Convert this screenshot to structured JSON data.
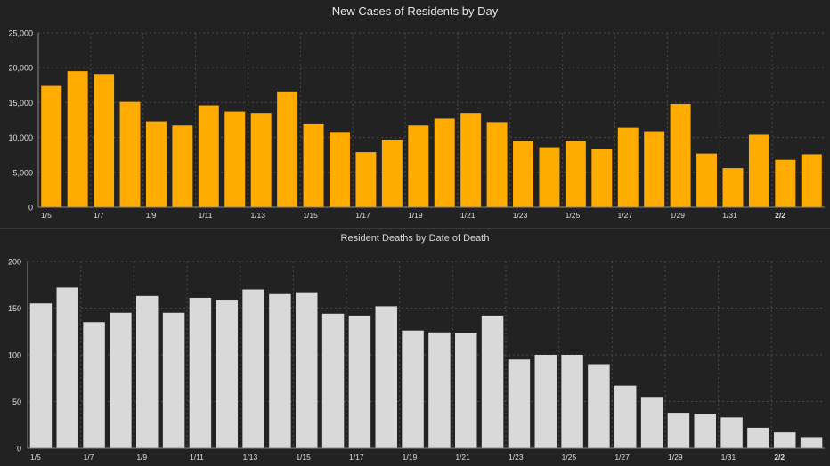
{
  "colors": {
    "background": "#222222",
    "cases_bar": "#ffab00",
    "deaths_bar": "#d9d9d9",
    "grid": "#4a4a4a",
    "axis": "#8a8a8a",
    "tick_text": "#e0e0e0"
  },
  "chart_data": [
    {
      "type": "bar",
      "title": "New Cases of Residents by Day",
      "xlabel": "",
      "ylabel": "",
      "categories": [
        "1/5",
        "1/6",
        "1/7",
        "1/8",
        "1/9",
        "1/10",
        "1/11",
        "1/12",
        "1/13",
        "1/14",
        "1/15",
        "1/16",
        "1/17",
        "1/18",
        "1/19",
        "1/20",
        "1/21",
        "1/22",
        "1/23",
        "1/24",
        "1/25",
        "1/26",
        "1/27",
        "1/28",
        "1/29",
        "1/30",
        "1/31",
        "2/1",
        "2/2",
        "2/3"
      ],
      "values": [
        17400,
        19500,
        19100,
        15100,
        12300,
        11700,
        14600,
        13700,
        13500,
        16600,
        12000,
        10800,
        7900,
        9700,
        11700,
        12700,
        13500,
        12200,
        9500,
        8600,
        9500,
        8300,
        11400,
        10900,
        14800,
        7700,
        5600,
        10400,
        6800,
        7600
      ],
      "x_tick_labels": [
        "1/5",
        "1/7",
        "1/9",
        "1/11",
        "1/13",
        "1/15",
        "1/17",
        "1/19",
        "1/21",
        "1/23",
        "1/25",
        "1/27",
        "1/29",
        "1/31",
        "2/2"
      ],
      "y_tick_labels": [
        "0",
        "5,000",
        "10,000",
        "15,000",
        "20,000",
        "25,000"
      ],
      "y_ticks": [
        0,
        5000,
        10000,
        15000,
        20000,
        25000
      ],
      "ylim": [
        0,
        25000
      ],
      "grid": true,
      "bar_color": "#ffab00"
    },
    {
      "type": "bar",
      "title": "Resident Deaths by Date of Death",
      "xlabel": "",
      "ylabel": "",
      "categories": [
        "1/5",
        "1/6",
        "1/7",
        "1/8",
        "1/9",
        "1/10",
        "1/11",
        "1/12",
        "1/13",
        "1/14",
        "1/15",
        "1/16",
        "1/17",
        "1/18",
        "1/19",
        "1/20",
        "1/21",
        "1/22",
        "1/23",
        "1/24",
        "1/25",
        "1/26",
        "1/27",
        "1/28",
        "1/29",
        "1/30",
        "1/31",
        "2/1",
        "2/2",
        "2/3"
      ],
      "values": [
        155,
        172,
        135,
        145,
        163,
        145,
        161,
        159,
        170,
        165,
        167,
        144,
        142,
        152,
        126,
        124,
        123,
        142,
        95,
        100,
        100,
        90,
        67,
        55,
        38,
        37,
        33,
        22,
        17,
        12
      ],
      "x_tick_labels": [
        "1/5",
        "1/7",
        "1/9",
        "1/11",
        "1/13",
        "1/15",
        "1/17",
        "1/19",
        "1/21",
        "1/23",
        "1/25",
        "1/27",
        "1/29",
        "1/31",
        "2/2"
      ],
      "y_tick_labels": [
        "0",
        "50",
        "100",
        "150",
        "200"
      ],
      "y_ticks": [
        0,
        50,
        100,
        150,
        200
      ],
      "ylim": [
        0,
        200
      ],
      "grid": true,
      "bar_color": "#d9d9d9"
    }
  ]
}
